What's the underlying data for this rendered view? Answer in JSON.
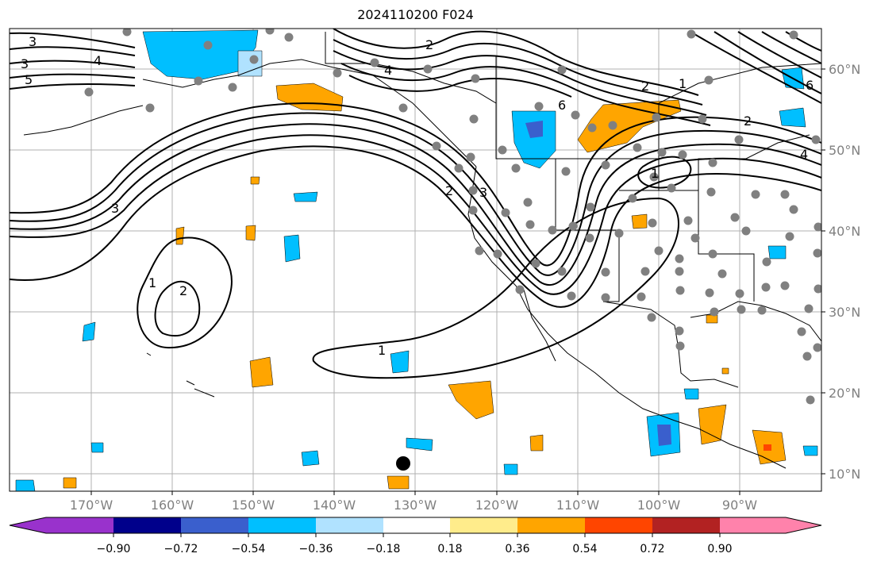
{
  "title": "2024110200 F024",
  "lat_labels": [
    "60°N",
    "50°N",
    "40°N",
    "30°N",
    "20°N",
    "10°N"
  ],
  "lon_labels": [
    "170°W",
    "160°W",
    "150°W",
    "140°W",
    "130°W",
    "120°W",
    "110°W",
    "100°W",
    "90°W"
  ],
  "colorbar": {
    "ticks": [
      "−0.90",
      "−0.72",
      "−0.54",
      "−0.36",
      "−0.18",
      "0.18",
      "0.36",
      "0.54",
      "0.72",
      "0.90"
    ],
    "colors": [
      "#9932cc",
      "#00008b",
      "#3a5fcd",
      "#00bfff",
      "#b0e2ff",
      "#ffffff",
      "#ffec8b",
      "#ffa500",
      "#ff4500",
      "#b22222",
      "#ff82ab"
    ]
  },
  "contour_labels": [
    "3",
    "3",
    "4",
    "5",
    "4",
    "2",
    "2",
    "6",
    "1",
    "2",
    "6",
    "4",
    "1",
    "2",
    "3",
    "3",
    "1",
    "2",
    "1"
  ],
  "colors": {
    "positive": "#ffa500",
    "negative": "#00bfff",
    "contour": "#000000",
    "dot": "#808080",
    "grid": "#b0b0b0"
  }
}
